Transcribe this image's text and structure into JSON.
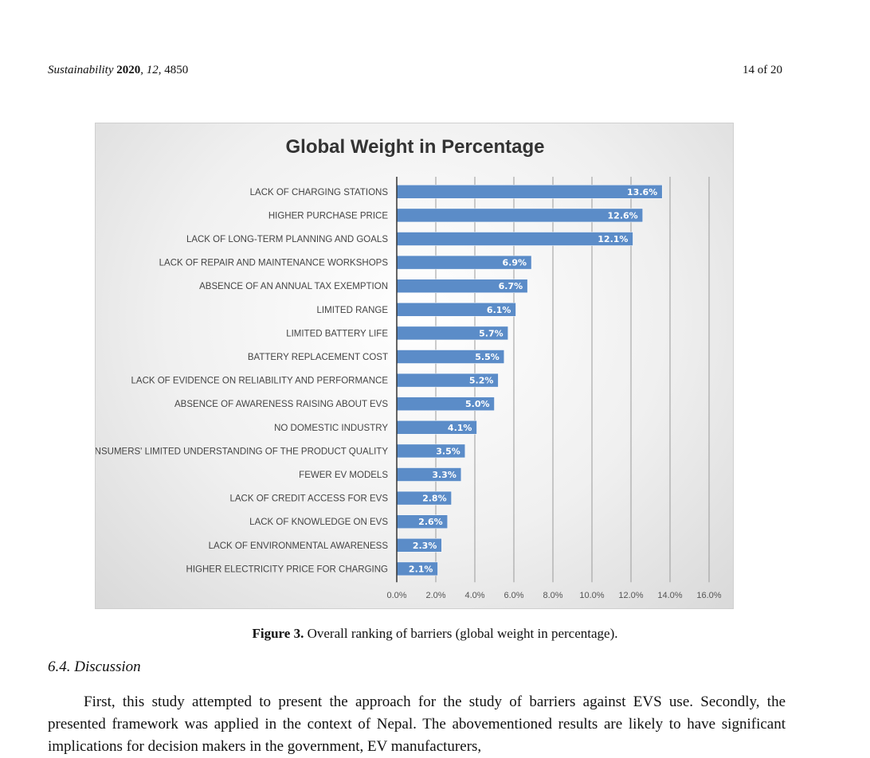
{
  "header": {
    "journal": "Sustainability",
    "year": "2020",
    "volume": "12",
    "article": "4850",
    "page": "14 of 20"
  },
  "chart_data": {
    "type": "bar",
    "orientation": "horizontal",
    "title": "Global Weight in Percentage",
    "categories": [
      "LACK OF CHARGING STATIONS",
      "HIGHER PURCHASE PRICE",
      "LACK OF LONG-TERM PLANNING AND GOALS",
      "LACK OF REPAIR AND MAINTENANCE WORKSHOPS",
      "ABSENCE OF AN ANNUAL TAX EXEMPTION",
      "LIMITED RANGE",
      "LIMITED BATTERY LIFE",
      "BATTERY REPLACEMENT COST",
      "LACK OF EVIDENCE ON RELIABILITY AND PERFORMANCE",
      "ABSENCE OF AWARENESS RAISING ABOUT EVS",
      "NO DOMESTIC INDUSTRY",
      "CONSUMERS' LIMITED UNDERSTANDING OF THE PRODUCT QUALITY",
      "FEWER EV MODELS",
      "LACK OF CREDIT ACCESS FOR EVS",
      "LACK OF KNOWLEDGE ON EVS",
      "LACK OF ENVIRONMENTAL AWARENESS",
      "HIGHER ELECTRICITY PRICE FOR CHARGING"
    ],
    "values": [
      13.6,
      12.6,
      12.1,
      6.9,
      6.7,
      6.1,
      5.7,
      5.5,
      5.2,
      5.0,
      4.1,
      3.5,
      3.3,
      2.8,
      2.6,
      2.3,
      2.1
    ],
    "value_labels": [
      "13.6%",
      "12.6%",
      "12.1%",
      "6.9%",
      "6.7%",
      "6.1%",
      "5.7%",
      "5.5%",
      "5.2%",
      "5.0%",
      "4.1%",
      "3.5%",
      "3.3%",
      "2.8%",
      "2.6%",
      "2.3%",
      "2.1%"
    ],
    "xlim": [
      0,
      16
    ],
    "xticks": [
      "0.0%",
      "2.0%",
      "4.0%",
      "6.0%",
      "8.0%",
      "10.0%",
      "12.0%",
      "14.0%",
      "16.0%"
    ],
    "grid": true,
    "bar_color": "#5b8cc8"
  },
  "caption": {
    "label": "Figure 3.",
    "text": "Overall ranking of barriers (global weight in percentage)."
  },
  "section": {
    "heading": "6.4. Discussion"
  },
  "body": {
    "paragraph": "First, this study attempted to present the approach for the study of barriers against EVS use. Secondly, the presented framework was applied in the context of Nepal. The abovementioned results are likely to have significant implications for decision makers in the government, EV manufacturers,"
  }
}
